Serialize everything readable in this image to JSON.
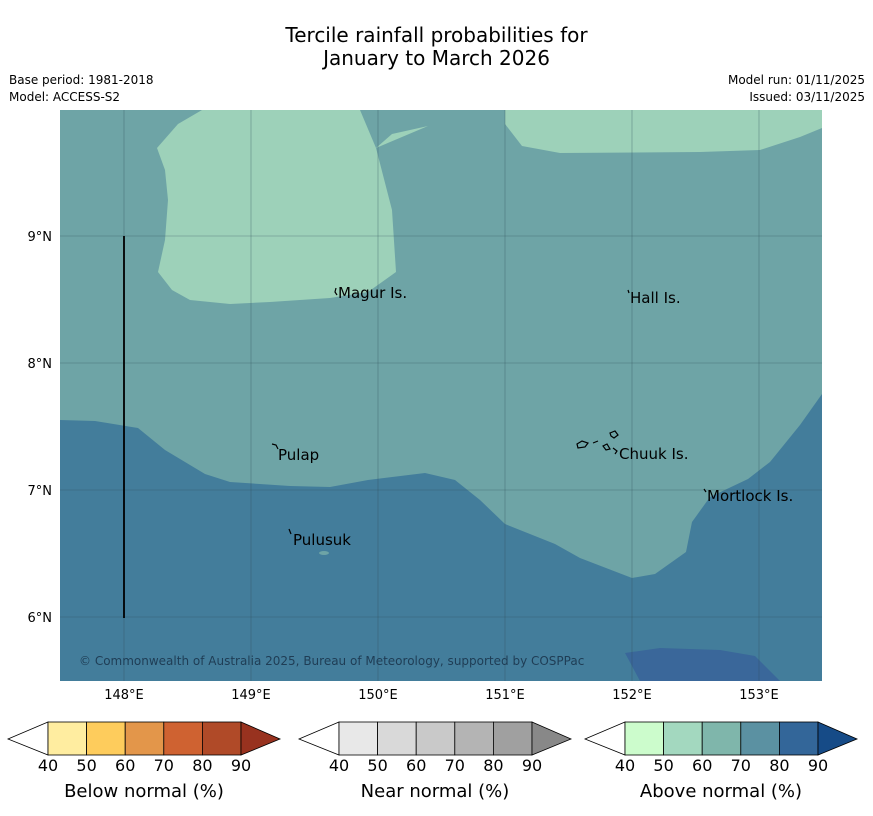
{
  "title_line1": "Tercile rainfall probabilities for",
  "title_line2": "January to March 2026",
  "base_period": "Base period: 1981-2018",
  "model": "Model: ACCESS-S2",
  "model_run": "Model run: 01/11/2025",
  "issued": "Issued: 03/11/2025",
  "map": {
    "lat_labels": [
      "9°N",
      "8°N",
      "7°N",
      "6°N"
    ],
    "lon_labels": [
      "148°E",
      "149°E",
      "150°E",
      "151°E",
      "152°E",
      "153°E"
    ],
    "places": [
      "Magur Is.",
      "Hall Is.",
      "Pulap",
      "Chuuk Is.",
      "Mortlock Is.",
      "Pulusuk"
    ],
    "copyright": "© Commonwealth of Australia 2025, Bureau of Meteorology, supported by COSPPac",
    "colors": {
      "above50": "#9dd1b9",
      "above60": "#6ea4a6",
      "above70": "#437d9b",
      "above80": "#3a679a"
    }
  },
  "colorbars": [
    {
      "label": "Below normal (%)",
      "ticks": [
        "40",
        "50",
        "60",
        "70",
        "80",
        "90"
      ],
      "colors": [
        "#ffffff",
        "#ffeda0",
        "#fecc5c",
        "#e3964a",
        "#cf6231",
        "#b04a28",
        "#98321f"
      ]
    },
    {
      "label": "Near normal (%)",
      "ticks": [
        "40",
        "50",
        "60",
        "70",
        "80",
        "90"
      ],
      "colors": [
        "#ffffff",
        "#e8e8e8",
        "#d9d9d9",
        "#c9c9c9",
        "#b4b4b4",
        "#a0a0a0",
        "#888888"
      ]
    },
    {
      "label": "Above normal (%)",
      "ticks": [
        "40",
        "50",
        "60",
        "70",
        "80",
        "90"
      ],
      "colors": [
        "#ffffff",
        "#ccfccc",
        "#a3d8bf",
        "#7fb6ab",
        "#5b91a2",
        "#336699",
        "#164b87"
      ]
    }
  ]
}
